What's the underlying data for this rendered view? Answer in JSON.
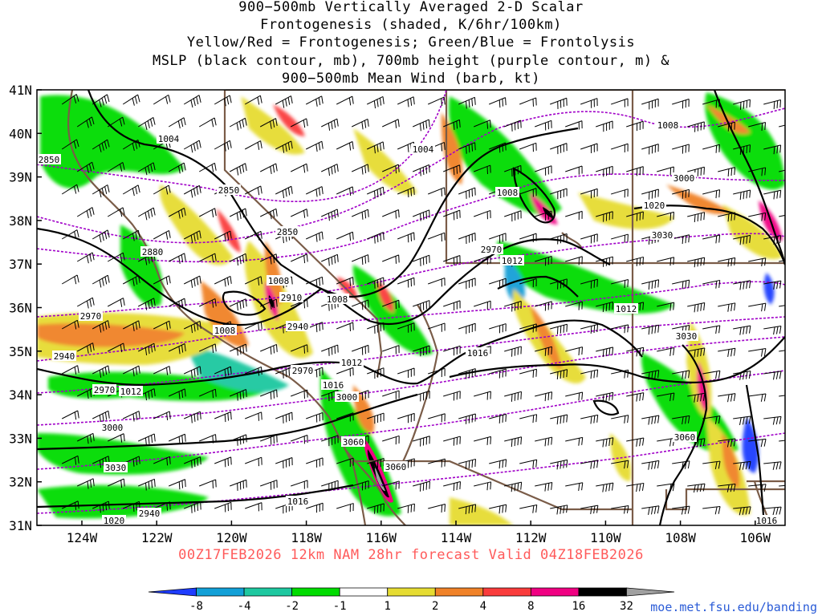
{
  "title_lines": [
    "900−500mb Vertically Averaged 2-D Scalar",
    "Frontogenesis (shaded, K/6hr/100km)",
    "Yellow/Red = Frontogenesis;  Green/Blue = Frontolysis",
    "MSLP (black contour, mb), 700mb height (purple contour, m) &",
    "900−500mb Mean Wind (barb, kt)"
  ],
  "lat_labels": [
    "41N",
    "40N",
    "39N",
    "38N",
    "37N",
    "36N",
    "35N",
    "34N",
    "33N",
    "32N",
    "31N"
  ],
  "lon_labels": [
    "124W",
    "122W",
    "120W",
    "118W",
    "116W",
    "114W",
    "112W",
    "110W",
    "108W",
    "106W"
  ],
  "forecast_line": "00Z17FEB2026 12km NAM 28hr forecast Valid 04Z18FEB2026",
  "credit": "moe.met.fsu.edu/banding",
  "colorbar": {
    "labels": [
      "-8",
      "-4",
      "-2",
      "-1",
      "1",
      "2",
      "4",
      "8",
      "16",
      "32"
    ],
    "colors": [
      "#1e3cff",
      "#12a0d7",
      "#1ec8a0",
      "#00dc00",
      "#ffffff",
      "#e6dc32",
      "#f08228",
      "#fa3c3c",
      "#f00082",
      "#000000",
      "#a0a0a0"
    ]
  },
  "mslp_labels": [
    "1004",
    "1004",
    "1008",
    "1008",
    "1008",
    "1008",
    "1012",
    "1012",
    "1012",
    "1012",
    "1016",
    "1016",
    "1016",
    "1020",
    "1020",
    "1016"
  ],
  "height_labels": [
    "2850",
    "2850",
    "2850",
    "2880",
    "2910",
    "2940",
    "2940",
    "2970",
    "2970",
    "2970",
    "2970",
    "3000",
    "3000",
    "3000",
    "3030",
    "3030",
    "3030",
    "3060",
    "3060",
    "3060",
    "2940",
    "1008"
  ],
  "colors": {
    "border": "#7a5c48",
    "mslp": "#000000",
    "height": "#a000c8",
    "barb": "#000000"
  }
}
